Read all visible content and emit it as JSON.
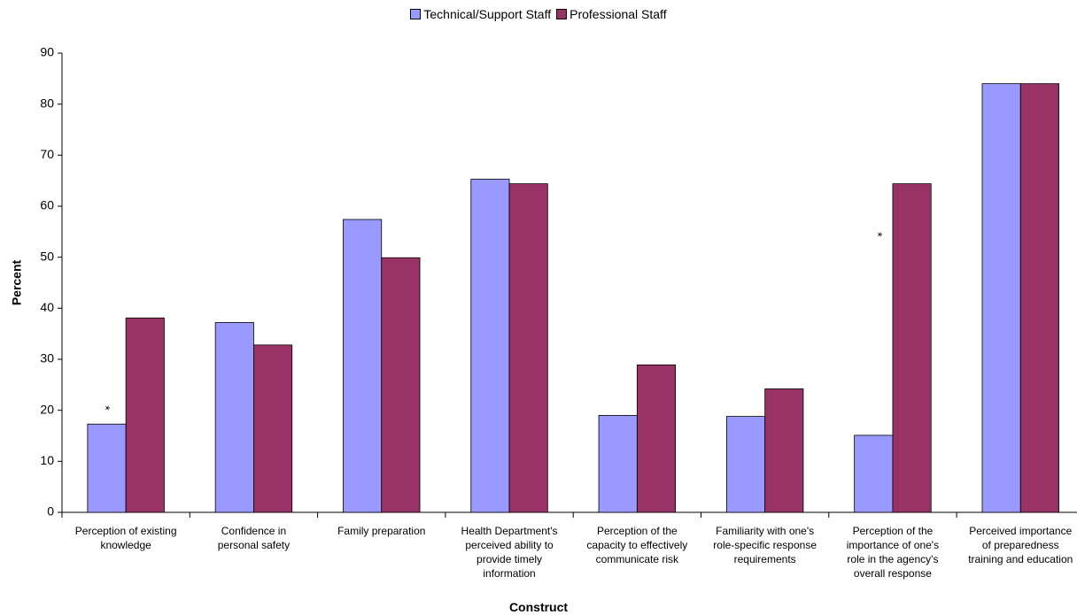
{
  "chart_data": {
    "type": "bar",
    "x_label": "Construct",
    "y_label": "Percent",
    "categories": [
      "Perception of existing\nknowledge",
      "Confidence in\npersonal safety",
      "Family preparation",
      "Health Department's\nperceived ability to\nprovide timely\ninformation",
      "Perception of the\ncapacity to effectively\ncommunicate risk",
      "Familiarity with one's\nrole-specific response\nrequirements",
      "Perception of the\nimportance of one's\nrole in the agency's\noverall response",
      "Perceived importance\nof preparedness\ntraining and education"
    ],
    "series": [
      {
        "name": "Technical/Support Staff",
        "color": "#9999ff",
        "values": [
          17.3,
          37.2,
          57.4,
          65.3,
          19.0,
          18.8,
          15.1,
          84.0
        ]
      },
      {
        "name": "Professional Staff",
        "color": "#993366",
        "values": [
          38.1,
          32.8,
          49.9,
          64.4,
          28.9,
          24.2,
          64.4,
          84.0
        ]
      }
    ],
    "annotations": [
      "*",
      "*"
    ],
    "ylim": [
      0,
      90
    ],
    "yticks": [
      0,
      10,
      20,
      30,
      40,
      50,
      60,
      70,
      80,
      90
    ],
    "grid": false,
    "legend": "top"
  }
}
